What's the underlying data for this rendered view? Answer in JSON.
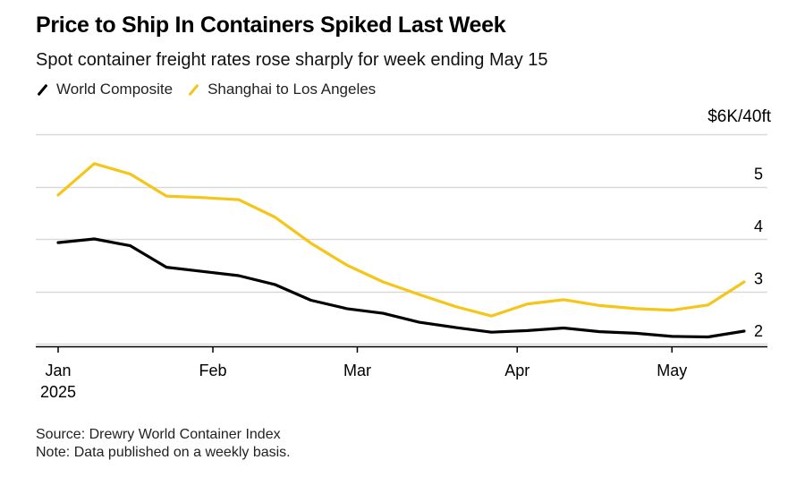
{
  "title": "Price to Ship In Containers Spiked Last Week",
  "subtitle": "Spot container freight rates rose sharply for week ending May 15",
  "unit_label": "$6K/40ft",
  "source": "Source: Drewry World Container Index",
  "note": "Note: Data published on a weekly basis.",
  "colors": {
    "world": "#000000",
    "shanghai": "#f5c518",
    "grid": "#d9d9d9"
  },
  "chart_data": {
    "type": "line",
    "title": "Price to Ship In Containers Spiked Last Week",
    "subtitle": "Spot container freight rates rose sharply for week ending May 15",
    "ylabel": "$6K/40ft",
    "ylim": [
      1.95,
      6
    ],
    "yticks": [
      2,
      3,
      4,
      5
    ],
    "xticks": [
      {
        "label": "Jan",
        "sublabel": "2025",
        "date": "2025-01-02"
      },
      {
        "label": "Feb",
        "sublabel": "",
        "date": "2025-02-01"
      },
      {
        "label": "Mar",
        "sublabel": "",
        "date": "2025-03-01"
      },
      {
        "label": "Apr",
        "sublabel": "",
        "date": "2025-04-01"
      },
      {
        "label": "May",
        "sublabel": "",
        "date": "2025-05-01"
      }
    ],
    "x": [
      "2025-01-02",
      "2025-01-09",
      "2025-01-16",
      "2025-01-23",
      "2025-01-30",
      "2025-02-06",
      "2025-02-13",
      "2025-02-20",
      "2025-02-27",
      "2025-03-06",
      "2025-03-13",
      "2025-03-20",
      "2025-03-27",
      "2025-04-03",
      "2025-04-10",
      "2025-04-17",
      "2025-04-24",
      "2025-05-01",
      "2025-05-08",
      "2025-05-15"
    ],
    "series": [
      {
        "name": "World Composite",
        "color": "#000000",
        "values": [
          3.93,
          4.0,
          3.87,
          3.46,
          3.38,
          3.3,
          3.13,
          2.83,
          2.67,
          2.58,
          2.41,
          2.31,
          2.22,
          2.25,
          2.3,
          2.23,
          2.2,
          2.14,
          2.13,
          2.24
        ]
      },
      {
        "name": "Shanghai to Los Angeles",
        "color": "#f5c518",
        "values": [
          4.84,
          5.44,
          5.24,
          4.82,
          4.79,
          4.75,
          4.42,
          3.92,
          3.5,
          3.18,
          2.94,
          2.71,
          2.53,
          2.76,
          2.84,
          2.73,
          2.67,
          2.64,
          2.74,
          3.18
        ]
      }
    ],
    "grid": true,
    "legend": "top-left"
  }
}
